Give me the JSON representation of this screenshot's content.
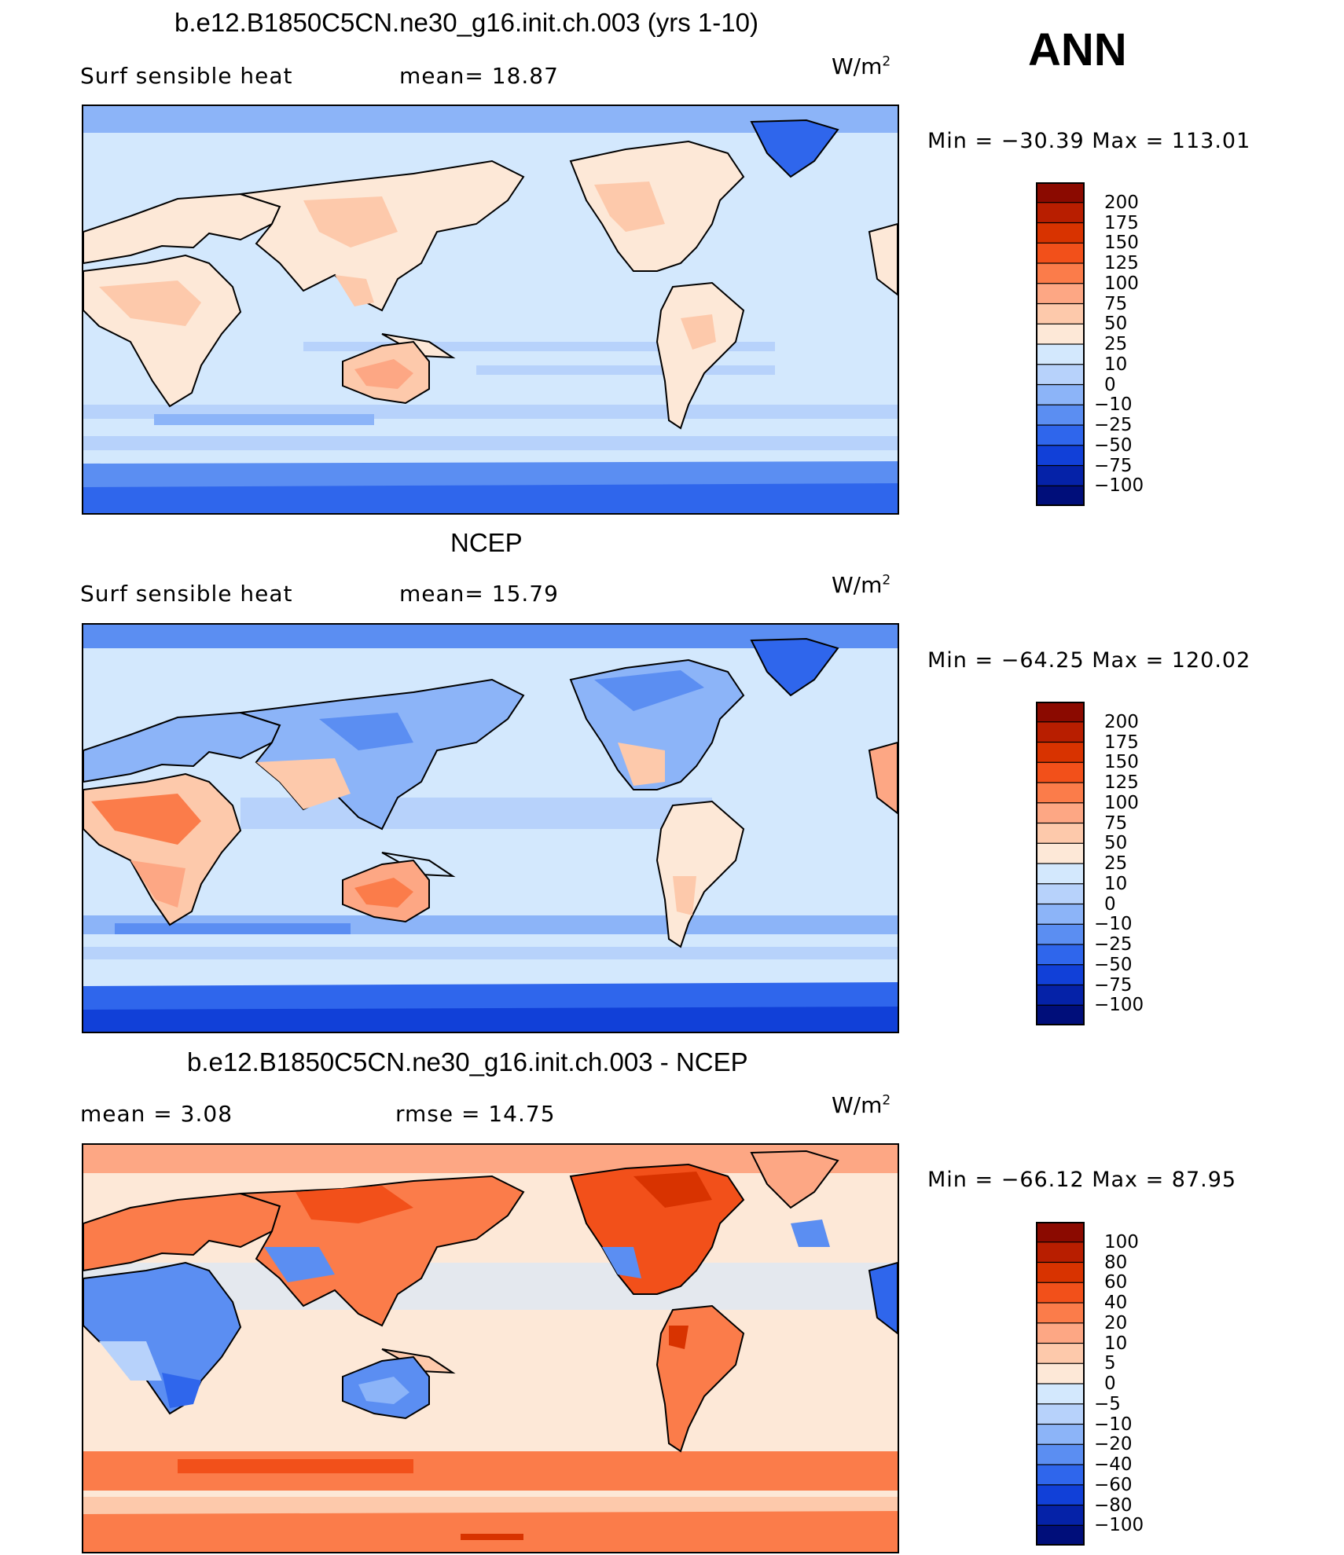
{
  "season": "ANN",
  "panels": [
    {
      "title": "b.e12.B1850C5CN.ne30_g16.init.ch.003 (yrs 1-10)",
      "left_label": "Surf  sensible  heat",
      "center_label": "mean=   18.87",
      "units_base": "W/m",
      "units_exp": "2",
      "minmax": "Min  =  −30.39  Max  =  113.01",
      "colorbar": {
        "levels": [
          "200",
          "175",
          "150",
          "125",
          "100",
          "75",
          "50",
          "25",
          "10",
          "0",
          "−10",
          "−25",
          "−50",
          "−75",
          "−100"
        ],
        "colors": [
          "#8b0a00",
          "#b81e00",
          "#d83300",
          "#f2501a",
          "#fb7c4a",
          "#fda784",
          "#fdc9ab",
          "#fde8d7",
          "#d3e8fd",
          "#b7d2fb",
          "#8cb4f8",
          "#5b8ef2",
          "#2f66ec",
          "#1140d8",
          "#0522a8",
          "#000e7a"
        ]
      }
    },
    {
      "title": "NCEP",
      "left_label": "Surf  sensible  heat",
      "center_label": "mean=   15.79",
      "units_base": "W/m",
      "units_exp": "2",
      "minmax": "Min  =  −64.25  Max  =  120.02",
      "colorbar": {
        "levels": [
          "200",
          "175",
          "150",
          "125",
          "100",
          "75",
          "50",
          "25",
          "10",
          "0",
          "−10",
          "−25",
          "−50",
          "−75",
          "−100"
        ],
        "colors": [
          "#8b0a00",
          "#b81e00",
          "#d83300",
          "#f2501a",
          "#fb7c4a",
          "#fda784",
          "#fdc9ab",
          "#fde8d7",
          "#d3e8fd",
          "#b7d2fb",
          "#8cb4f8",
          "#5b8ef2",
          "#2f66ec",
          "#1140d8",
          "#0522a8",
          "#000e7a"
        ]
      }
    },
    {
      "title": "b.e12.B1850C5CN.ne30_g16.init.ch.003 - NCEP",
      "left_label": "mean  =     3.08",
      "center_label": "rmse  =    14.75",
      "units_base": "W/m",
      "units_exp": "2",
      "minmax": "Min  =  −66.12  Max  =    87.95",
      "colorbar": {
        "levels": [
          "100",
          "80",
          "60",
          "40",
          "20",
          "10",
          "5",
          "0",
          "−5",
          "−10",
          "−20",
          "−40",
          "−60",
          "−80",
          "−100"
        ],
        "colors": [
          "#8b0a00",
          "#b81e00",
          "#d83300",
          "#f2501a",
          "#fb7c4a",
          "#fda784",
          "#fdc9ab",
          "#fde8d7",
          "#d3e8fd",
          "#b7d2fb",
          "#8cb4f8",
          "#5b8ef2",
          "#2f66ec",
          "#1140d8",
          "#0522a8",
          "#000e7a"
        ]
      }
    }
  ],
  "chart_data": [
    {
      "type": "heatmap",
      "title": "b.e12.B1850C5CN.ne30_g16.init.ch.003 (yrs 1-10)",
      "variable": "Surf  sensible  heat",
      "units": "W/m2",
      "mean": 18.87,
      "min": -30.39,
      "max": 113.01,
      "contour_levels": [
        -100,
        -75,
        -50,
        -25,
        -10,
        0,
        10,
        25,
        50,
        75,
        100,
        125,
        150,
        175,
        200
      ]
    },
    {
      "type": "heatmap",
      "title": "NCEP",
      "variable": "Surf  sensible  heat",
      "units": "W/m2",
      "mean": 15.79,
      "min": -64.25,
      "max": 120.02,
      "contour_levels": [
        -100,
        -75,
        -50,
        -25,
        -10,
        0,
        10,
        25,
        50,
        75,
        100,
        125,
        150,
        175,
        200
      ]
    },
    {
      "type": "heatmap",
      "title": "b.e12.B1850C5CN.ne30_g16.init.ch.003 - NCEP",
      "units": "W/m2",
      "mean": 3.08,
      "rmse": 14.75,
      "min": -66.12,
      "max": 87.95,
      "contour_levels": [
        -100,
        -80,
        -60,
        -40,
        -20,
        -10,
        -5,
        0,
        5,
        10,
        20,
        40,
        60,
        80,
        100
      ]
    }
  ]
}
